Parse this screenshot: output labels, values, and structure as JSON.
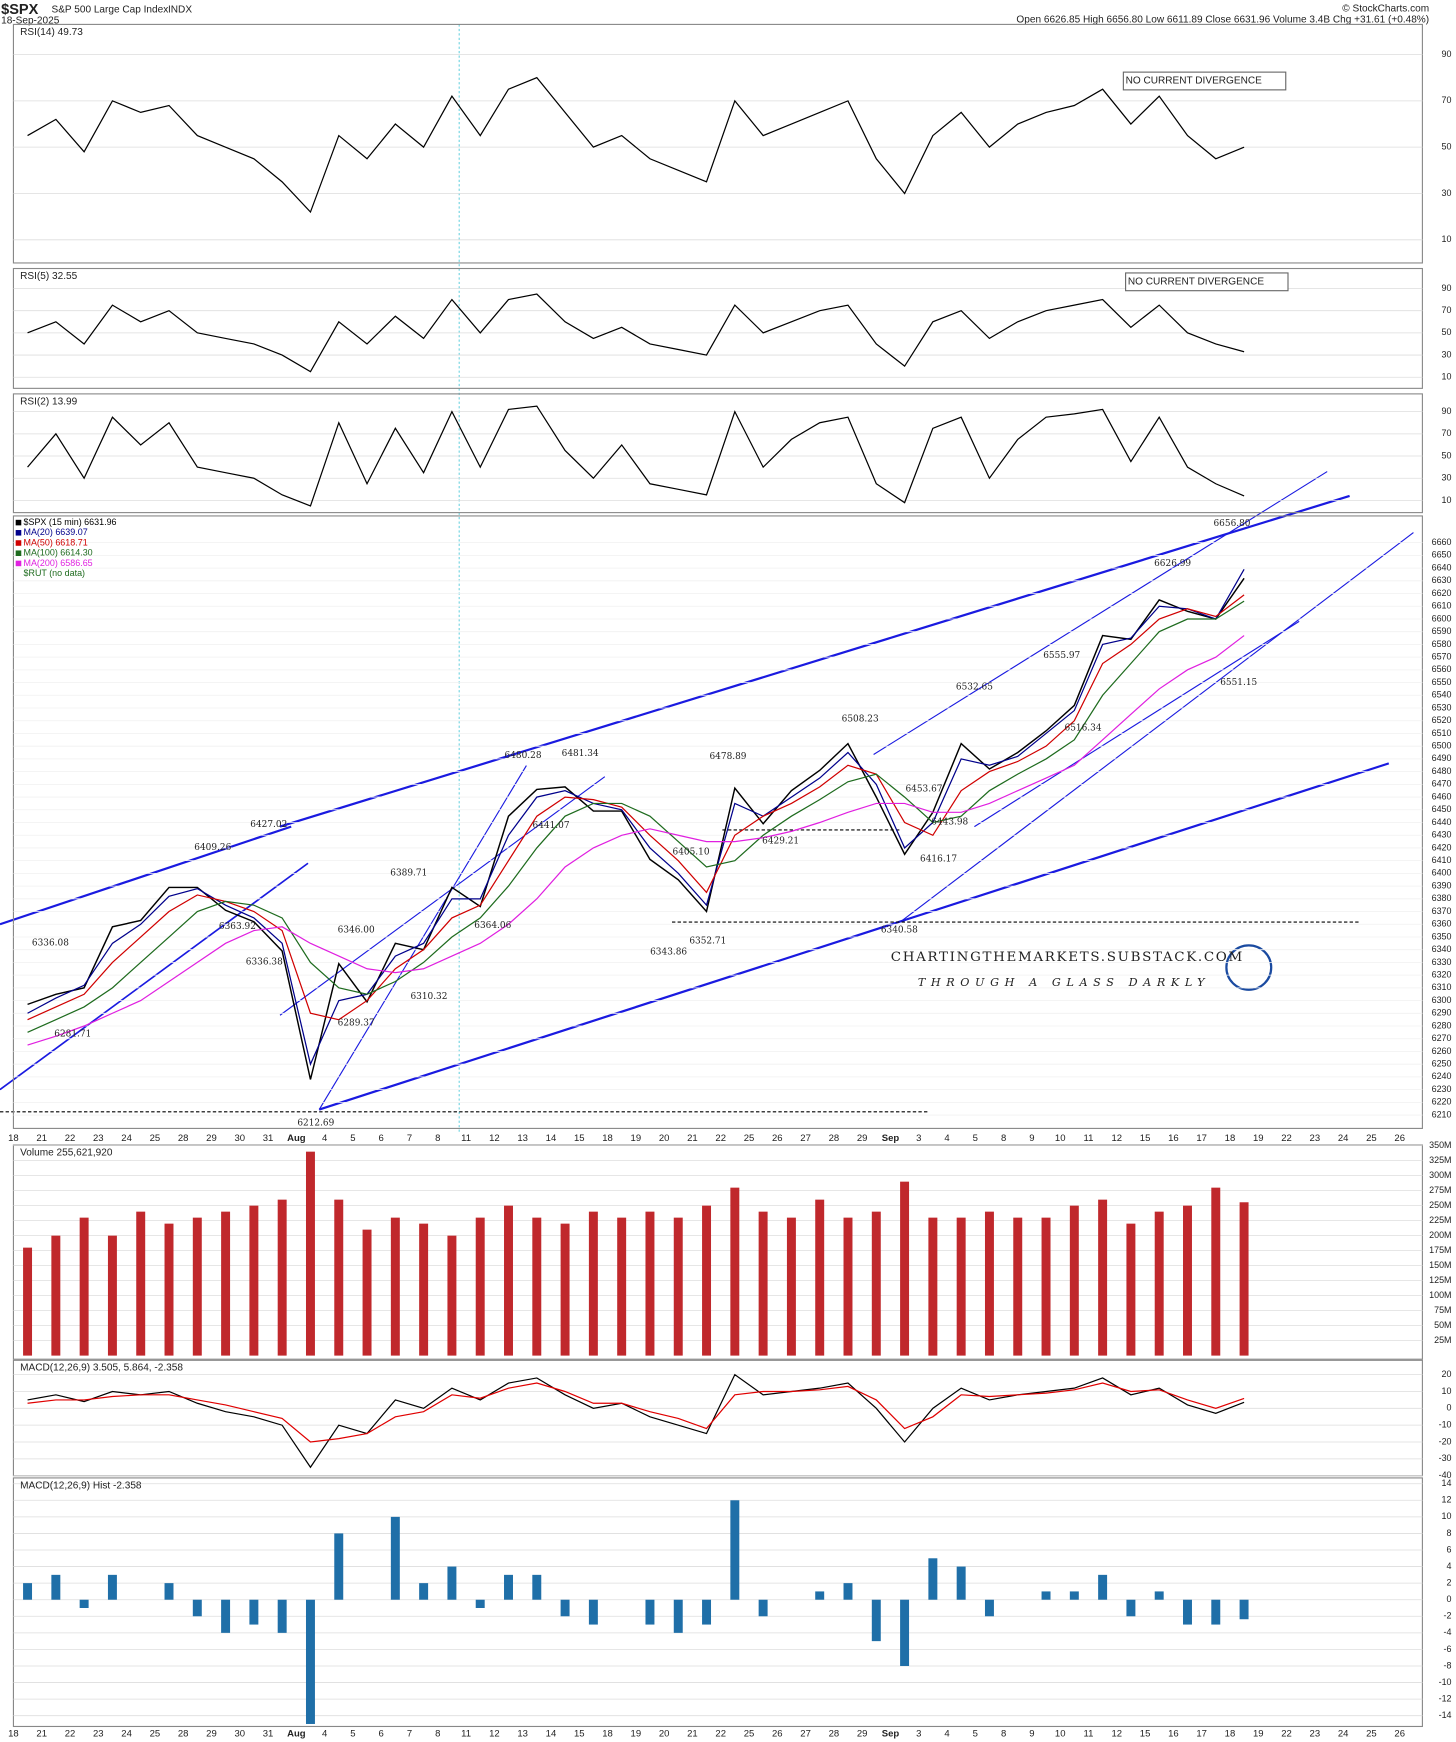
{
  "header": {
    "symbol": "$SPX",
    "name": "S&P 500 Large Cap Index",
    "exchange": "INDX",
    "date": "18-Sep-2025",
    "quote": "Open 6626.85  High 6656.80  Low 6611.89  Close 6631.96  Volume 3.4B  Chg +31.61 (+0.48%)",
    "copyright": "© StockCharts.com"
  },
  "chart_data": [
    {
      "type": "line",
      "title": "RSI(14) 49.73",
      "ylim": [
        0,
        103
      ],
      "yticks": [
        10,
        30,
        50,
        70,
        90
      ],
      "annotation": "NO CURRENT DIVERGENCE",
      "series": [
        {
          "color": "#000000",
          "values": [
            55,
            62,
            48,
            70,
            65,
            68,
            55,
            50,
            45,
            35,
            22,
            55,
            45,
            60,
            50,
            72,
            55,
            75,
            80,
            65,
            50,
            55,
            45,
            40,
            35,
            70,
            55,
            60,
            65,
            70,
            45,
            30,
            55,
            65,
            50,
            60,
            65,
            68,
            75,
            60,
            72,
            55,
            45,
            50,
            null,
            null,
            null,
            null,
            null,
            null
          ]
        }
      ]
    },
    {
      "type": "line",
      "title": "RSI(5) 32.55",
      "ylim": [
        0,
        108
      ],
      "yticks": [
        10,
        30,
        50,
        70,
        90
      ],
      "annotation": "NO CURRENT DIVERGENCE",
      "series": [
        {
          "color": "#000000",
          "values": [
            50,
            60,
            40,
            75,
            60,
            70,
            50,
            45,
            40,
            30,
            15,
            60,
            40,
            65,
            45,
            80,
            50,
            80,
            85,
            60,
            45,
            55,
            40,
            35,
            30,
            75,
            50,
            60,
            70,
            75,
            40,
            20,
            60,
            70,
            45,
            60,
            70,
            75,
            80,
            55,
            75,
            50,
            40,
            33,
            null,
            null,
            null,
            null,
            null,
            null
          ]
        }
      ]
    },
    {
      "type": "line",
      "title": "RSI(2) 13.99",
      "ylim": [
        -1,
        106
      ],
      "yticks": [
        10,
        30,
        50,
        70,
        90
      ],
      "series": [
        {
          "color": "#000000",
          "values": [
            40,
            70,
            30,
            85,
            60,
            80,
            40,
            35,
            30,
            15,
            5,
            80,
            25,
            75,
            35,
            90,
            40,
            92,
            95,
            55,
            30,
            60,
            25,
            20,
            15,
            90,
            40,
            65,
            80,
            85,
            25,
            8,
            75,
            85,
            30,
            65,
            85,
            88,
            92,
            45,
            85,
            40,
            25,
            14,
            null,
            null,
            null,
            null,
            null,
            null
          ]
        }
      ]
    },
    {
      "type": "line",
      "title": "$SPX (15 min) 6631.96",
      "ylim": [
        6199.5,
        6681
      ],
      "yticks": [
        6210,
        6220,
        6230,
        6240,
        6250,
        6260,
        6270,
        6280,
        6290,
        6300,
        6310,
        6320,
        6330,
        6340,
        6350,
        6360,
        6370,
        6380,
        6390,
        6400,
        6410,
        6420,
        6430,
        6440,
        6450,
        6460,
        6470,
        6480,
        6490,
        6500,
        6510,
        6520,
        6530,
        6540,
        6550,
        6560,
        6570,
        6580,
        6590,
        6600,
        6610,
        6620,
        6630,
        6640,
        6650,
        6660
      ],
      "categories": [
        "18",
        "21",
        "22",
        "23",
        "24",
        "25",
        "28",
        "29",
        "30",
        "31",
        "Aug",
        "4",
        "5",
        "6",
        "7",
        "8",
        "11",
        "12",
        "13",
        "14",
        "15",
        "18",
        "19",
        "20",
        "21",
        "22",
        "25",
        "26",
        "27",
        "28",
        "29",
        "Sep",
        "3",
        "4",
        "5",
        "8",
        "9",
        "10",
        "11",
        "12",
        "15",
        "16",
        "17",
        "18",
        "19",
        "22",
        "23",
        "24",
        "25",
        "26"
      ],
      "series": [
        {
          "name": "$SPX (15 min) 6631.96",
          "color": "#000000",
          "values": [
            6297,
            6305,
            6310,
            6358,
            6363,
            6389,
            6389,
            6371,
            6362,
            6339,
            6238,
            6329,
            6299,
            6345,
            6340,
            6389,
            6374,
            6445,
            6466,
            6468,
            6449,
            6449,
            6411,
            6395,
            6370,
            6467,
            6439,
            6465,
            6481,
            6502,
            6460,
            6415,
            6448,
            6502,
            6482,
            6495,
            6512,
            6532,
            6587,
            6584,
            6615,
            6606,
            6600,
            6632,
            null,
            null,
            null,
            null,
            null,
            null
          ]
        },
        {
          "name": "MA(20) 6639.07",
          "color": "#00008b",
          "values": [
            6290,
            6302,
            6312,
            6345,
            6360,
            6382,
            6388,
            6375,
            6365,
            6345,
            6250,
            6300,
            6305,
            6335,
            6345,
            6380,
            6380,
            6430,
            6460,
            6465,
            6455,
            6450,
            6420,
            6400,
            6375,
            6455,
            6445,
            6460,
            6475,
            6495,
            6470,
            6420,
            6440,
            6490,
            6485,
            6492,
            6510,
            6528,
            6580,
            6585,
            6610,
            6608,
            6600,
            6639,
            null,
            null,
            null,
            null,
            null,
            null
          ]
        },
        {
          "name": "MA(50) 6618.71",
          "color": "#d00000",
          "values": [
            6285,
            6295,
            6305,
            6330,
            6350,
            6370,
            6383,
            6378,
            6370,
            6355,
            6290,
            6285,
            6300,
            6325,
            6340,
            6365,
            6375,
            6410,
            6445,
            6460,
            6458,
            6452,
            6430,
            6410,
            6385,
            6430,
            6445,
            6455,
            6468,
            6485,
            6478,
            6440,
            6430,
            6465,
            6480,
            6488,
            6500,
            6520,
            6565,
            6580,
            6600,
            6608,
            6602,
            6619,
            null,
            null,
            null,
            null,
            null,
            null
          ]
        },
        {
          "name": "MA(100) 6614.30",
          "color": "#1e6b1e",
          "values": [
            6275,
            6285,
            6295,
            6310,
            6330,
            6350,
            6370,
            6378,
            6375,
            6365,
            6330,
            6310,
            6305,
            6315,
            6330,
            6350,
            6365,
            6390,
            6420,
            6445,
            6455,
            6455,
            6445,
            6425,
            6405,
            6410,
            6430,
            6445,
            6458,
            6472,
            6478,
            6460,
            6440,
            6445,
            6465,
            6478,
            6490,
            6505,
            6540,
            6565,
            6590,
            6600,
            6600,
            6614,
            null,
            null,
            null,
            null,
            null,
            null
          ]
        },
        {
          "name": "MA(200) 6586.65",
          "color": "#e020e0",
          "values": [
            6265,
            6272,
            6280,
            6290,
            6300,
            6315,
            6330,
            6345,
            6355,
            6358,
            6345,
            6335,
            6325,
            6322,
            6325,
            6335,
            6345,
            6360,
            6380,
            6405,
            6420,
            6430,
            6435,
            6430,
            6425,
            6425,
            6428,
            6433,
            6440,
            6448,
            6455,
            6455,
            6448,
            6448,
            6455,
            6465,
            6475,
            6485,
            6505,
            6525,
            6545,
            6560,
            6570,
            6587,
            null,
            null,
            null,
            null,
            null,
            null
          ]
        }
      ],
      "extra_legend": "$RUT (no data)",
      "pivots": [
        6336.08,
        6281.71,
        6409.26,
        6363.92,
        6427.02,
        6336.38,
        6212.69,
        6289.37,
        {
          "value": 6346,
          "label": "6346.00"
        },
        6389.71,
        6310.32,
        6480.28,
        6481.34,
        6441.07,
        6364.06,
        {
          "value": 6405.1,
          "label": "6405.10"
        },
        6343.86,
        6352.71,
        6478.89,
        6429.21,
        6508.23,
        6453.67,
        6443.98,
        6416.17,
        6340.58,
        6532.65,
        6555.97,
        6516.34,
        6626.99,
        {
          "value": 6656.8,
          "label": "6656.80"
        },
        6551.15
      ],
      "watermark": {
        "site": "CHARTINGTHEMARKETS.SUBSTACK.COM",
        "tagline": "THROUGH A GLASS DARKLY"
      }
    },
    {
      "type": "bar",
      "title": "Volume 255,621,920",
      "ylim": [
        -6000000,
        351000000
      ],
      "yticks": [
        {
          "value": 25000000,
          "label": "25M"
        },
        {
          "value": 50000000,
          "label": "50M"
        },
        {
          "value": 75000000,
          "label": "75M"
        },
        {
          "value": 100000000,
          "label": "100M"
        },
        {
          "value": 125000000,
          "label": "125M"
        },
        {
          "value": 150000000,
          "label": "150M"
        },
        {
          "value": 175000000,
          "label": "175M"
        },
        {
          "value": 200000000,
          "label": "200M"
        },
        {
          "value": 225000000,
          "label": "225M"
        },
        {
          "value": 250000000,
          "label": "250M"
        },
        {
          "value": 275000000,
          "label": "275M"
        },
        {
          "value": 300000000,
          "label": "300M"
        },
        {
          "value": 325000000,
          "label": "325M"
        },
        {
          "value": 350000000,
          "label": "350M"
        }
      ],
      "series": [
        {
          "color": "#c0282c",
          "values": [
            180000000,
            200000000,
            230000000,
            200000000,
            240000000,
            220000000,
            230000000,
            240000000,
            250000000,
            260000000,
            340000000,
            260000000,
            210000000,
            230000000,
            220000000,
            200000000,
            230000000,
            250000000,
            230000000,
            220000000,
            240000000,
            230000000,
            240000000,
            230000000,
            250000000,
            280000000,
            240000000,
            230000000,
            260000000,
            230000000,
            240000000,
            290000000,
            230000000,
            230000000,
            240000000,
            230000000,
            230000000,
            250000000,
            260000000,
            220000000,
            240000000,
            250000000,
            280000000,
            255621920,
            null,
            null,
            null,
            null,
            null,
            null
          ]
        }
      ]
    },
    {
      "type": "line",
      "title": "MACD(12,26,9) 3.505, 5.864, -2.358",
      "ylim": [
        -40,
        28.5
      ],
      "yticks": [
        -40,
        -30,
        -20,
        -10,
        0,
        10,
        20
      ],
      "series": [
        {
          "color": "#000000",
          "values": [
            5,
            8,
            4,
            10,
            8,
            10,
            3,
            -2,
            -5,
            -10,
            -35,
            -10,
            -15,
            5,
            0,
            12,
            5,
            15,
            18,
            8,
            0,
            3,
            -5,
            -10,
            -15,
            20,
            8,
            10,
            12,
            15,
            0,
            -20,
            0,
            12,
            5,
            8,
            10,
            12,
            18,
            8,
            12,
            2,
            -3,
            3.505,
            null,
            null,
            null,
            null,
            null,
            null
          ]
        },
        {
          "color": "#e00000",
          "values": [
            3,
            5,
            5,
            7,
            8,
            8,
            5,
            2,
            -2,
            -6,
            -20,
            -18,
            -15,
            -5,
            -2,
            8,
            6,
            12,
            15,
            10,
            3,
            3,
            -2,
            -6,
            -12,
            8,
            10,
            10,
            11,
            13,
            5,
            -12,
            -5,
            8,
            7,
            8,
            9,
            11,
            15,
            10,
            11,
            5,
            0,
            5.864,
            null,
            null,
            null,
            null,
            null,
            null
          ]
        }
      ]
    },
    {
      "type": "bar",
      "title": "MACD(12,26,9) Hist -2.358",
      "ylim": [
        -15.3,
        14.7
      ],
      "yticks": [
        -14,
        -12,
        -10,
        -8,
        -6,
        -4,
        -2,
        0,
        2,
        4,
        6,
        8,
        10,
        12,
        14
      ],
      "series": [
        {
          "color": "#1f6fa8",
          "values": [
            2,
            3,
            -1,
            3,
            0,
            2,
            -2,
            -4,
            -3,
            -4,
            -15,
            8,
            0,
            10,
            2,
            4,
            -1,
            3,
            3,
            -2,
            -3,
            0,
            -3,
            -4,
            -3,
            12,
            -2,
            0,
            1,
            2,
            -5,
            -8,
            5,
            4,
            -2,
            0,
            1,
            1,
            3,
            -2,
            1,
            -3,
            -3,
            -2.358,
            null,
            null,
            null,
            null,
            null,
            null
          ]
        }
      ]
    }
  ]
}
